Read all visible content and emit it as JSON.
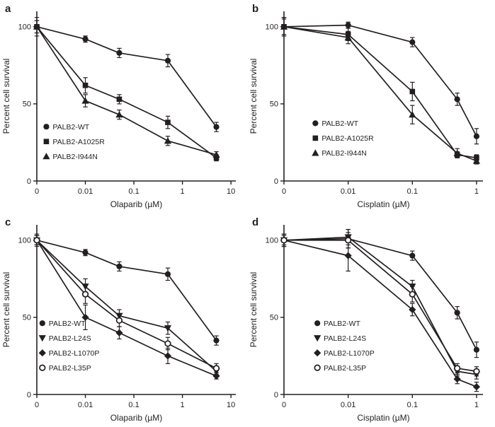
{
  "colors": {
    "ink": "#231f20",
    "background": "#ffffff"
  },
  "chart_data": [
    {
      "id": "a",
      "panel_label": "a",
      "type": "line",
      "xlabel": "Olaparib (µM)",
      "ylabel": "Percent cell survival",
      "x_scale": "log with zero at origin",
      "x_tick_labels": [
        "0",
        "0.01",
        "0.1",
        "1",
        "10"
      ],
      "x_tick_values": [
        0,
        0.01,
        0.1,
        1,
        10
      ],
      "y_tick_values": [
        0,
        50,
        100
      ],
      "ylim": [
        0,
        110
      ],
      "grid": false,
      "legend_position": "inside lower-left",
      "legend": {
        "fx": 0.03,
        "fy": 0.68
      },
      "x": [
        0,
        0.01,
        0.05,
        0.5,
        5
      ],
      "series": [
        {
          "name": "PALB2-WT",
          "marker": "circle",
          "values": [
            100,
            92,
            83,
            78,
            35
          ],
          "err": [
            6,
            2,
            3,
            4,
            3
          ]
        },
        {
          "name": "PALB2-A1025R",
          "marker": "square",
          "values": [
            100,
            62,
            53,
            38,
            15
          ],
          "err": [
            4,
            5,
            3,
            4,
            2
          ]
        },
        {
          "name": "PALB2-I944N",
          "marker": "triangle-up",
          "values": [
            100,
            52,
            43,
            26,
            17
          ],
          "err": [
            4,
            4,
            3,
            3,
            2
          ]
        }
      ]
    },
    {
      "id": "b",
      "panel_label": "b",
      "type": "line",
      "xlabel": "Cisplatin (µM)",
      "ylabel": "Percent cell survival",
      "x_scale": "log with zero at origin",
      "x_tick_labels": [
        "0",
        "0.01",
        "0.1",
        "1"
      ],
      "x_tick_values": [
        0,
        0.01,
        0.1,
        1
      ],
      "y_tick_values": [
        0,
        50,
        100
      ],
      "ylim": [
        0,
        110
      ],
      "grid": false,
      "legend_position": "inside lower-left",
      "legend": {
        "fx": 0.14,
        "fy": 0.66
      },
      "x": [
        0,
        0.01,
        0.1,
        0.5,
        1
      ],
      "series": [
        {
          "name": "PALB2-WT",
          "marker": "circle",
          "values": [
            100,
            101,
            90,
            53,
            29
          ],
          "err": [
            6,
            2,
            3,
            4,
            5
          ]
        },
        {
          "name": "PALB2-A1025R",
          "marker": "square",
          "values": [
            100,
            95,
            58,
            17,
            15
          ],
          "err": [
            6,
            4,
            6,
            2,
            2
          ]
        },
        {
          "name": "PALB2-I944N",
          "marker": "triangle-up",
          "values": [
            100,
            93,
            43,
            18,
            13
          ],
          "err": [
            5,
            4,
            6,
            3,
            2
          ]
        }
      ]
    },
    {
      "id": "c",
      "panel_label": "c",
      "type": "line",
      "xlabel": "Olaparib (µM)",
      "ylabel": "Percent cell survival",
      "x_scale": "log with zero at origin",
      "x_tick_labels": [
        "0",
        "0.01",
        "0.1",
        "1",
        "10"
      ],
      "x_tick_values": [
        0,
        0.01,
        0.1,
        1,
        10
      ],
      "y_tick_values": [
        0,
        50,
        100
      ],
      "ylim": [
        0,
        110
      ],
      "grid": false,
      "legend_position": "inside lower-left",
      "legend": {
        "fx": 0.01,
        "fy": 0.58
      },
      "x": [
        0,
        0.01,
        0.05,
        0.5,
        5
      ],
      "series": [
        {
          "name": "PALB2-WT",
          "marker": "circle",
          "values": [
            100,
            92,
            83,
            78,
            35
          ],
          "err": [
            4,
            2,
            3,
            4,
            3
          ]
        },
        {
          "name": "PALB2-L24S",
          "marker": "triangle-down",
          "values": [
            100,
            70,
            51,
            43,
            15
          ],
          "err": [
            3,
            5,
            4,
            4,
            2
          ]
        },
        {
          "name": "PALB2-L1070P",
          "marker": "diamond",
          "values": [
            100,
            50,
            40,
            25,
            12
          ],
          "err": [
            3,
            8,
            4,
            5,
            2
          ]
        },
        {
          "name": "PALB2-L35P",
          "marker": "open-circle",
          "values": [
            100,
            65,
            48,
            33,
            17
          ],
          "err": [
            3,
            6,
            4,
            4,
            3
          ]
        }
      ]
    },
    {
      "id": "d",
      "panel_label": "d",
      "type": "line",
      "xlabel": "Cisplatin (µM)",
      "ylabel": "Percent cell survival",
      "x_scale": "log with zero at origin",
      "x_tick_labels": [
        "0",
        "0.01",
        "0.1",
        "1"
      ],
      "x_tick_values": [
        0,
        0.01,
        0.1,
        1
      ],
      "y_tick_values": [
        0,
        50,
        100
      ],
      "ylim": [
        0,
        110
      ],
      "grid": false,
      "legend_position": "inside lower-left",
      "legend": {
        "fx": 0.15,
        "fy": 0.58
      },
      "x": [
        0,
        0.01,
        0.1,
        0.5,
        1
      ],
      "series": [
        {
          "name": "PALB2-WT",
          "marker": "circle",
          "values": [
            100,
            101,
            90,
            53,
            29
          ],
          "err": [
            4,
            6,
            3,
            4,
            5
          ]
        },
        {
          "name": "PALB2-L24S",
          "marker": "triangle-down",
          "values": [
            100,
            102,
            70,
            15,
            13
          ],
          "err": [
            4,
            5,
            4,
            3,
            3
          ]
        },
        {
          "name": "PALB2-L1070P",
          "marker": "diamond",
          "values": [
            100,
            90,
            55,
            10,
            5
          ],
          "err": [
            3,
            10,
            4,
            3,
            3
          ]
        },
        {
          "name": "PALB2-L35P",
          "marker": "open-circle",
          "values": [
            100,
            100,
            65,
            17,
            15
          ],
          "err": [
            4,
            5,
            5,
            3,
            3
          ]
        }
      ]
    }
  ]
}
